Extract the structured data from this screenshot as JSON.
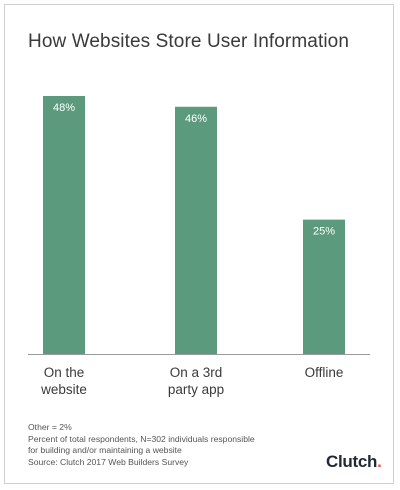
{
  "title": "How Websites Store User Information",
  "chart_data": {
    "type": "bar",
    "title": "How Websites Store User Information",
    "categories": [
      "On the website",
      "On a 3rd party app",
      "Offline"
    ],
    "category_lines": [
      [
        "On the",
        "website"
      ],
      [
        "On a 3rd",
        "party app"
      ],
      [
        "Offline"
      ]
    ],
    "values": [
      48,
      46,
      25
    ],
    "value_labels": [
      "48%",
      "46%",
      "25%"
    ],
    "ylim": [
      0,
      48
    ],
    "grid": false,
    "legend": "none",
    "bar_color": "#5c9a7e"
  },
  "footnotes": [
    "Other = 2%",
    "Percent of total respondents, N=302 individuals responsible",
    "for building and/or maintaining a website",
    "Source: Clutch 2017 Web Builders Survey"
  ],
  "logo": {
    "text": "Clutch",
    "dot": "."
  },
  "colors": {
    "bar": "#5c9a7e",
    "axis": "#9a9a9a",
    "text": "#3a3a3a",
    "logo_dot": "#e8554e"
  }
}
